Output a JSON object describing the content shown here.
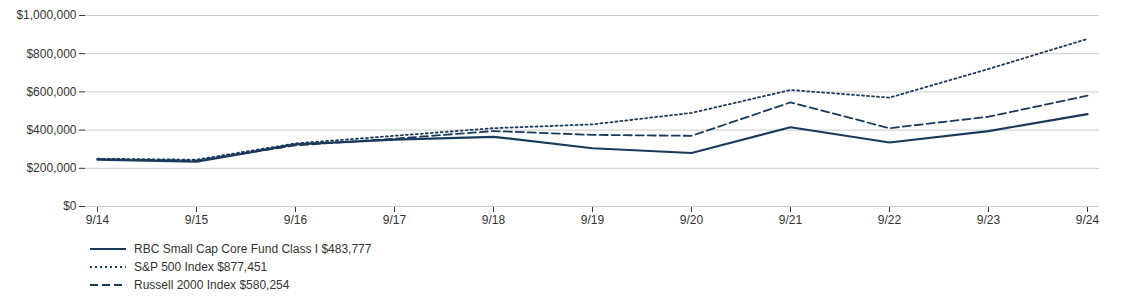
{
  "chart_data": {
    "type": "line",
    "categories": [
      "9/14",
      "9/15",
      "9/16",
      "9/17",
      "9/18",
      "9/19",
      "9/20",
      "9/21",
      "9/22",
      "9/23",
      "9/24"
    ],
    "series": [
      {
        "name": "RBC Small Cap Core Fund Class I $483,777",
        "color": "#1a3a5c",
        "line_style": "solid",
        "values": [
          245000,
          235000,
          325000,
          350000,
          365000,
          305000,
          280000,
          415000,
          335000,
          395000,
          483777
        ]
      },
      {
        "name": "S&P 500 Index $877,451",
        "color": "#1a3a5c",
        "line_style": "dotted",
        "values": [
          250000,
          245000,
          330000,
          370000,
          410000,
          430000,
          490000,
          610000,
          570000,
          720000,
          877451
        ]
      },
      {
        "name": "Russell 2000 Index $580,254",
        "color": "#1a3a5c",
        "line_style": "dashed",
        "values": [
          248000,
          240000,
          320000,
          355000,
          395000,
          375000,
          370000,
          545000,
          410000,
          470000,
          580254
        ]
      }
    ],
    "ylim": [
      0,
      1000000
    ],
    "yticks": [
      {
        "value": 0,
        "label": "$0"
      },
      {
        "value": 200000,
        "label": "$200,000"
      },
      {
        "value": 400000,
        "label": "$400,000"
      },
      {
        "value": 600000,
        "label": "$600,000"
      },
      {
        "value": 800000,
        "label": "$800,000"
      },
      {
        "value": 1000000,
        "label": "$1,000,000"
      }
    ],
    "grid": true,
    "legend": "bottom"
  }
}
